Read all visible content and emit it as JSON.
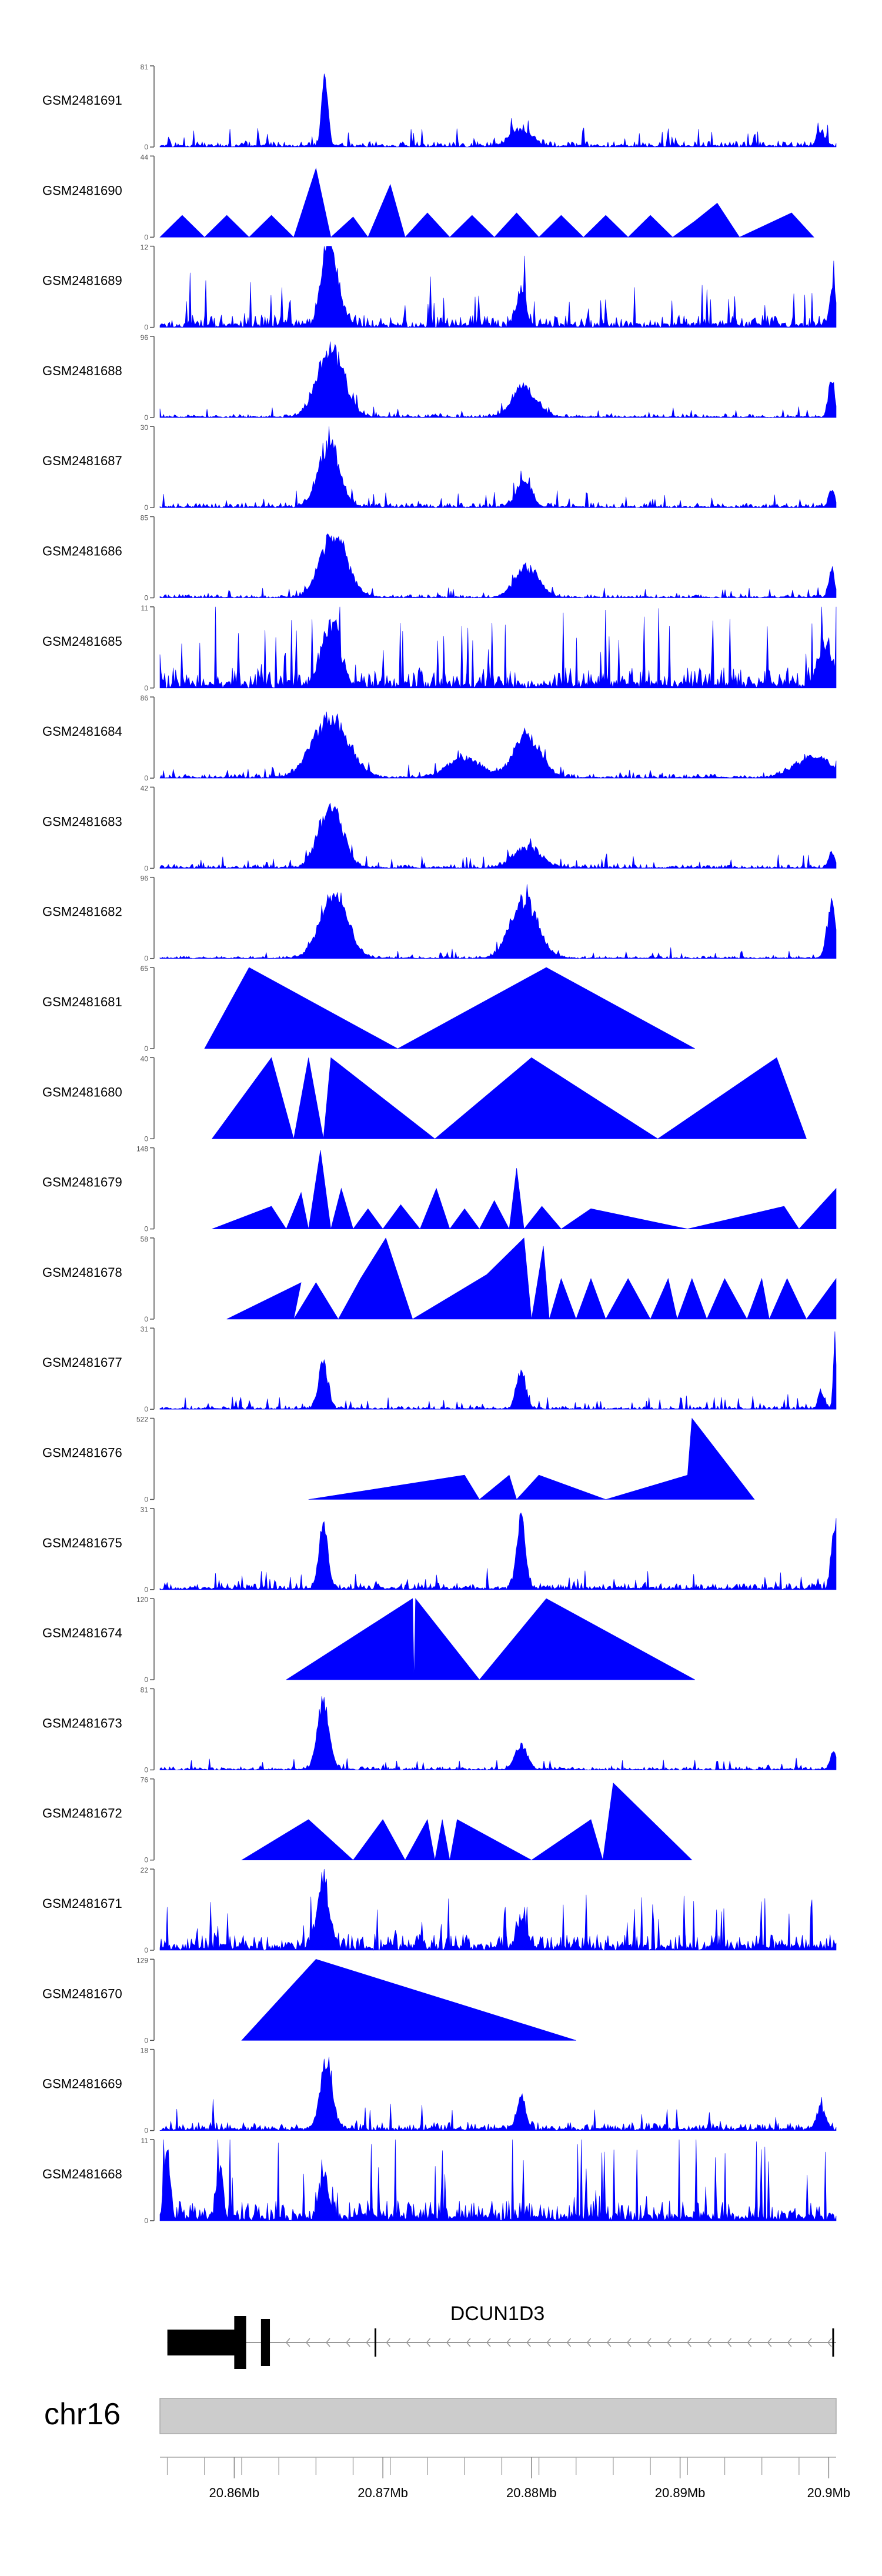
{
  "chart_data": {
    "type": "area",
    "chromosome": "chr16",
    "gene": {
      "name": "DCUN1D3",
      "strand": "-",
      "start_mb": 20.8555,
      "end_mb": 20.9005,
      "exons": [
        {
          "start_mb": 20.8555,
          "end_mb": 20.8603
        },
        {
          "start_mb": 20.86,
          "end_mb": 20.8608
        },
        {
          "start_mb": 20.8618,
          "end_mb": 20.8624
        }
      ],
      "markers_mb": [
        20.8695,
        20.9003
      ]
    },
    "x_range_mb": [
      20.855,
      20.9005
    ],
    "x_ticks": [
      {
        "value": 20.86,
        "label": "20.86Mb"
      },
      {
        "value": 20.87,
        "label": "20.87Mb"
      },
      {
        "value": 20.88,
        "label": "20.88Mb"
      },
      {
        "value": 20.89,
        "label": "20.89Mb"
      },
      {
        "value": 20.9,
        "label": "20.9Mb"
      }
    ],
    "tracks": [
      {
        "name": "GSM2481691",
        "ymax": 81,
        "ymin": 0,
        "style": "dense",
        "base": 0.07,
        "noise": 0.1,
        "seed": 11,
        "peaks": [
          {
            "x": 20.8661,
            "h": 1.0,
            "w": 0.0002
          },
          {
            "x": 20.8793,
            "h": 0.25,
            "w": 0.0007
          },
          {
            "x": 20.8995,
            "h": 0.2,
            "w": 0.0003
          }
        ]
      },
      {
        "name": "GSM2481690",
        "ymax": 44,
        "ymin": 0,
        "style": "sparse",
        "points": [
          [
            20.855,
            0
          ],
          [
            20.8565,
            0.27
          ],
          [
            20.858,
            0
          ],
          [
            20.8595,
            0.27
          ],
          [
            20.861,
            0
          ],
          [
            20.8625,
            0.27
          ],
          [
            20.864,
            0
          ],
          [
            20.8655,
            0.85
          ],
          [
            20.8665,
            0
          ],
          [
            20.868,
            0.25
          ],
          [
            20.869,
            0
          ],
          [
            20.8705,
            0.65
          ],
          [
            20.8715,
            0
          ],
          [
            20.873,
            0.3
          ],
          [
            20.8745,
            0
          ],
          [
            20.876,
            0.27
          ],
          [
            20.8775,
            0
          ],
          [
            20.879,
            0.3
          ],
          [
            20.8805,
            0
          ],
          [
            20.882,
            0.27
          ],
          [
            20.8835,
            0
          ],
          [
            20.885,
            0.27
          ],
          [
            20.8865,
            0
          ],
          [
            20.888,
            0.27
          ],
          [
            20.8895,
            0
          ],
          [
            20.891,
            0.2
          ],
          [
            20.8925,
            0.42
          ],
          [
            20.894,
            0
          ],
          [
            20.8975,
            0.3
          ],
          [
            20.899,
            0
          ]
        ]
      },
      {
        "name": "GSM2481689",
        "ymax": 12,
        "ymin": 0,
        "style": "dense",
        "base": 0.15,
        "noise": 0.25,
        "seed": 23,
        "peaks": [
          {
            "x": 20.8662,
            "h": 0.95,
            "w": 0.0004
          },
          {
            "x": 20.8668,
            "h": 0.6,
            "w": 0.0005
          },
          {
            "x": 20.8793,
            "h": 0.5,
            "w": 0.0003
          },
          {
            "x": 20.9003,
            "h": 0.6,
            "w": 0.0002
          }
        ]
      },
      {
        "name": "GSM2481688",
        "ymax": 96,
        "ymin": 0,
        "style": "dense",
        "base": 0.04,
        "noise": 0.06,
        "seed": 31,
        "peaks": [
          {
            "x": 20.8665,
            "h": 0.95,
            "w": 0.0009
          },
          {
            "x": 20.8795,
            "h": 0.42,
            "w": 0.0008
          },
          {
            "x": 20.9002,
            "h": 0.5,
            "w": 0.0002
          }
        ]
      },
      {
        "name": "GSM2481687",
        "ymax": 30,
        "ymin": 0,
        "style": "dense",
        "base": 0.06,
        "noise": 0.08,
        "seed": 37,
        "peaks": [
          {
            "x": 20.8664,
            "h": 0.92,
            "w": 0.0007
          },
          {
            "x": 20.8795,
            "h": 0.38,
            "w": 0.0005
          },
          {
            "x": 20.9002,
            "h": 0.25,
            "w": 0.0002
          }
        ]
      },
      {
        "name": "GSM2481686",
        "ymax": 85,
        "ymin": 0,
        "style": "dense",
        "base": 0.04,
        "noise": 0.05,
        "seed": 41,
        "peaks": [
          {
            "x": 20.8667,
            "h": 0.9,
            "w": 0.0009
          },
          {
            "x": 20.8797,
            "h": 0.42,
            "w": 0.0008
          },
          {
            "x": 20.9002,
            "h": 0.4,
            "w": 0.0002
          }
        ]
      },
      {
        "name": "GSM2481685",
        "ymax": 11,
        "ymin": 0,
        "style": "dense",
        "base": 0.25,
        "noise": 0.4,
        "seed": 47,
        "peaks": [
          {
            "x": 20.8665,
            "h": 0.9,
            "w": 0.0006
          },
          {
            "x": 20.8998,
            "h": 0.55,
            "w": 0.0005
          }
        ]
      },
      {
        "name": "GSM2481684",
        "ymax": 86,
        "ymin": 0,
        "style": "dense",
        "base": 0.05,
        "noise": 0.06,
        "seed": 53,
        "peaks": [
          {
            "x": 20.8665,
            "h": 0.85,
            "w": 0.0012
          },
          {
            "x": 20.8755,
            "h": 0.28,
            "w": 0.0011
          },
          {
            "x": 20.8797,
            "h": 0.6,
            "w": 0.0009
          },
          {
            "x": 20.899,
            "h": 0.3,
            "w": 0.0012
          }
        ]
      },
      {
        "name": "GSM2481683",
        "ymax": 42,
        "ymin": 0,
        "style": "dense",
        "base": 0.05,
        "noise": 0.07,
        "seed": 59,
        "peaks": [
          {
            "x": 20.8665,
            "h": 0.9,
            "w": 0.0008
          },
          {
            "x": 20.8797,
            "h": 0.3,
            "w": 0.0009
          },
          {
            "x": 20.9002,
            "h": 0.22,
            "w": 0.0002
          }
        ]
      },
      {
        "name": "GSM2481682",
        "ymax": 96,
        "ymin": 0,
        "style": "dense",
        "base": 0.03,
        "noise": 0.05,
        "seed": 61,
        "peaks": [
          {
            "x": 20.8667,
            "h": 0.95,
            "w": 0.0009
          },
          {
            "x": 20.8795,
            "h": 0.85,
            "w": 0.0009
          },
          {
            "x": 20.9002,
            "h": 0.75,
            "w": 0.0003
          }
        ]
      },
      {
        "name": "GSM2481681",
        "ymax": 65,
        "ymin": 0,
        "style": "sparse",
        "points": [
          [
            20.858,
            0
          ],
          [
            20.861,
            1.0
          ],
          [
            20.871,
            0
          ],
          [
            20.881,
            1.0
          ],
          [
            20.891,
            0
          ]
        ]
      },
      {
        "name": "GSM2481680",
        "ymax": 40,
        "ymin": 0,
        "style": "sparse",
        "points": [
          [
            20.8585,
            0
          ],
          [
            20.8625,
            1.0
          ],
          [
            20.864,
            0
          ],
          [
            20.865,
            1.0
          ],
          [
            20.866,
            0
          ],
          [
            20.8665,
            1.0
          ],
          [
            20.8735,
            0
          ],
          [
            20.88,
            1.0
          ],
          [
            20.8885,
            0
          ],
          [
            20.8965,
            1.0
          ],
          [
            20.8985,
            0
          ]
        ]
      },
      {
        "name": "GSM2481679",
        "ymax": 148,
        "ymin": 0,
        "style": "sparse",
        "points": [
          [
            20.8585,
            0
          ],
          [
            20.8625,
            0.28
          ],
          [
            20.8635,
            0
          ],
          [
            20.8645,
            0.45
          ],
          [
            20.865,
            0
          ],
          [
            20.8658,
            0.97
          ],
          [
            20.8665,
            0
          ],
          [
            20.8672,
            0.5
          ],
          [
            20.868,
            0
          ],
          [
            20.869,
            0.25
          ],
          [
            20.87,
            0
          ],
          [
            20.8712,
            0.3
          ],
          [
            20.8725,
            0
          ],
          [
            20.8736,
            0.5
          ],
          [
            20.8745,
            0
          ],
          [
            20.8755,
            0.25
          ],
          [
            20.8765,
            0
          ],
          [
            20.8775,
            0.35
          ],
          [
            20.8785,
            0
          ],
          [
            20.879,
            0.75
          ],
          [
            20.8795,
            0
          ],
          [
            20.8807,
            0.28
          ],
          [
            20.882,
            0
          ],
          [
            20.884,
            0.25
          ],
          [
            20.8905,
            0
          ],
          [
            20.897,
            0.28
          ],
          [
            20.898,
            0
          ],
          [
            20.9005,
            0.5
          ]
        ]
      },
      {
        "name": "GSM2481678",
        "ymax": 58,
        "ymin": 0,
        "style": "sparse",
        "points": [
          [
            20.8595,
            0
          ],
          [
            20.8645,
            0.45
          ],
          [
            20.864,
            0
          ],
          [
            20.8655,
            0.45
          ],
          [
            20.867,
            0
          ],
          [
            20.8685,
            0.5
          ],
          [
            20.8702,
            1.0
          ],
          [
            20.872,
            0
          ],
          [
            20.877,
            0.55
          ],
          [
            20.8795,
            1.0
          ],
          [
            20.88,
            0
          ],
          [
            20.8808,
            0.9
          ],
          [
            20.8812,
            0
          ],
          [
            20.882,
            0.5
          ],
          [
            20.883,
            0
          ],
          [
            20.884,
            0.5
          ],
          [
            20.885,
            0
          ],
          [
            20.8865,
            0.5
          ],
          [
            20.888,
            0
          ],
          [
            20.8892,
            0.5
          ],
          [
            20.8898,
            0
          ],
          [
            20.8908,
            0.5
          ],
          [
            20.8918,
            0
          ],
          [
            20.893,
            0.5
          ],
          [
            20.8945,
            0
          ],
          [
            20.8955,
            0.5
          ],
          [
            20.896,
            0
          ],
          [
            20.8972,
            0.5
          ],
          [
            20.8985,
            0
          ],
          [
            20.9005,
            0.5
          ]
        ]
      },
      {
        "name": "GSM2481677",
        "ymax": 31,
        "ymin": 0,
        "style": "dense",
        "base": 0.04,
        "noise": 0.07,
        "seed": 71,
        "peaks": [
          {
            "x": 20.866,
            "h": 0.7,
            "w": 0.0003
          },
          {
            "x": 20.8793,
            "h": 0.55,
            "w": 0.0003
          },
          {
            "x": 20.8995,
            "h": 0.25,
            "w": 0.0002
          },
          {
            "x": 20.9004,
            "h": 1.0,
            "w": 0.0001
          }
        ]
      },
      {
        "name": "GSM2481676",
        "ymax": 522,
        "ymin": 0,
        "style": "sparse",
        "points": [
          [
            20.865,
            0
          ],
          [
            20.8755,
            0.3
          ],
          [
            20.8765,
            0
          ],
          [
            20.8785,
            0.3
          ],
          [
            20.879,
            0
          ],
          [
            20.8805,
            0.3
          ],
          [
            20.885,
            0
          ],
          [
            20.8905,
            0.3
          ],
          [
            20.8908,
            1.0
          ],
          [
            20.895,
            0
          ]
        ]
      },
      {
        "name": "GSM2481675",
        "ymax": 31,
        "ymin": 0,
        "style": "dense",
        "base": 0.08,
        "noise": 0.1,
        "seed": 79,
        "peaks": [
          {
            "x": 20.866,
            "h": 0.85,
            "w": 0.0003
          },
          {
            "x": 20.8793,
            "h": 0.95,
            "w": 0.0003
          },
          {
            "x": 20.9004,
            "h": 1.0,
            "w": 0.0002
          }
        ]
      },
      {
        "name": "GSM2481674",
        "ymax": 120,
        "ymin": 0,
        "style": "sparse",
        "points": [
          [
            20.8635,
            0
          ],
          [
            20.872,
            1.0
          ],
          [
            20.8721,
            0
          ],
          [
            20.8722,
            1.0
          ],
          [
            20.8765,
            0
          ],
          [
            20.881,
            1.0
          ],
          [
            20.891,
            0
          ]
        ]
      },
      {
        "name": "GSM2481673",
        "ymax": 81,
        "ymin": 0,
        "style": "dense",
        "base": 0.04,
        "noise": 0.06,
        "seed": 83,
        "peaks": [
          {
            "x": 20.866,
            "h": 0.95,
            "w": 0.0004
          },
          {
            "x": 20.8793,
            "h": 0.35,
            "w": 0.0004
          },
          {
            "x": 20.9003,
            "h": 0.25,
            "w": 0.0002
          }
        ]
      },
      {
        "name": "GSM2481672",
        "ymax": 76,
        "ymin": 0,
        "style": "sparse",
        "points": [
          [
            20.8605,
            0
          ],
          [
            20.865,
            0.5
          ],
          [
            20.868,
            0
          ],
          [
            20.87,
            0.5
          ],
          [
            20.8715,
            0
          ],
          [
            20.873,
            0.5
          ],
          [
            20.8735,
            0
          ],
          [
            20.874,
            0.5
          ],
          [
            20.8745,
            0
          ],
          [
            20.875,
            0.5
          ],
          [
            20.88,
            0
          ],
          [
            20.884,
            0.5
          ],
          [
            20.8848,
            0
          ],
          [
            20.8855,
            0.95
          ],
          [
            20.8908,
            0
          ]
        ]
      },
      {
        "name": "GSM2481671",
        "ymax": 22,
        "ymin": 0,
        "style": "dense",
        "base": 0.2,
        "noise": 0.3,
        "seed": 89,
        "peaks": [
          {
            "x": 20.866,
            "h": 0.95,
            "w": 0.0004
          },
          {
            "x": 20.8793,
            "h": 0.45,
            "w": 0.0003
          }
        ]
      },
      {
        "name": "GSM2481670",
        "ymax": 129,
        "ymin": 0,
        "style": "sparse",
        "points": [
          [
            20.8605,
            0
          ],
          [
            20.8655,
            1.0
          ],
          [
            20.883,
            0
          ]
        ]
      },
      {
        "name": "GSM2481669",
        "ymax": 18,
        "ymin": 0,
        "style": "dense",
        "base": 0.1,
        "noise": 0.15,
        "seed": 97,
        "peaks": [
          {
            "x": 20.8662,
            "h": 0.95,
            "w": 0.0004
          },
          {
            "x": 20.8793,
            "h": 0.45,
            "w": 0.0003
          },
          {
            "x": 20.8995,
            "h": 0.3,
            "w": 0.0003
          }
        ]
      },
      {
        "name": "GSM2481668",
        "ymax": 11,
        "ymin": 0,
        "style": "dense",
        "base": 0.25,
        "noise": 0.55,
        "seed": 101,
        "peaks": [
          {
            "x": 20.8555,
            "h": 0.95,
            "w": 0.0002
          },
          {
            "x": 20.859,
            "h": 0.7,
            "w": 0.0002
          },
          {
            "x": 20.866,
            "h": 0.6,
            "w": 0.0003
          }
        ]
      }
    ],
    "colors": {
      "signal": "#0000FF",
      "ideogram": "#CCCCCC",
      "gene": "#000000",
      "text": "#000000",
      "axis": "#555555"
    }
  }
}
